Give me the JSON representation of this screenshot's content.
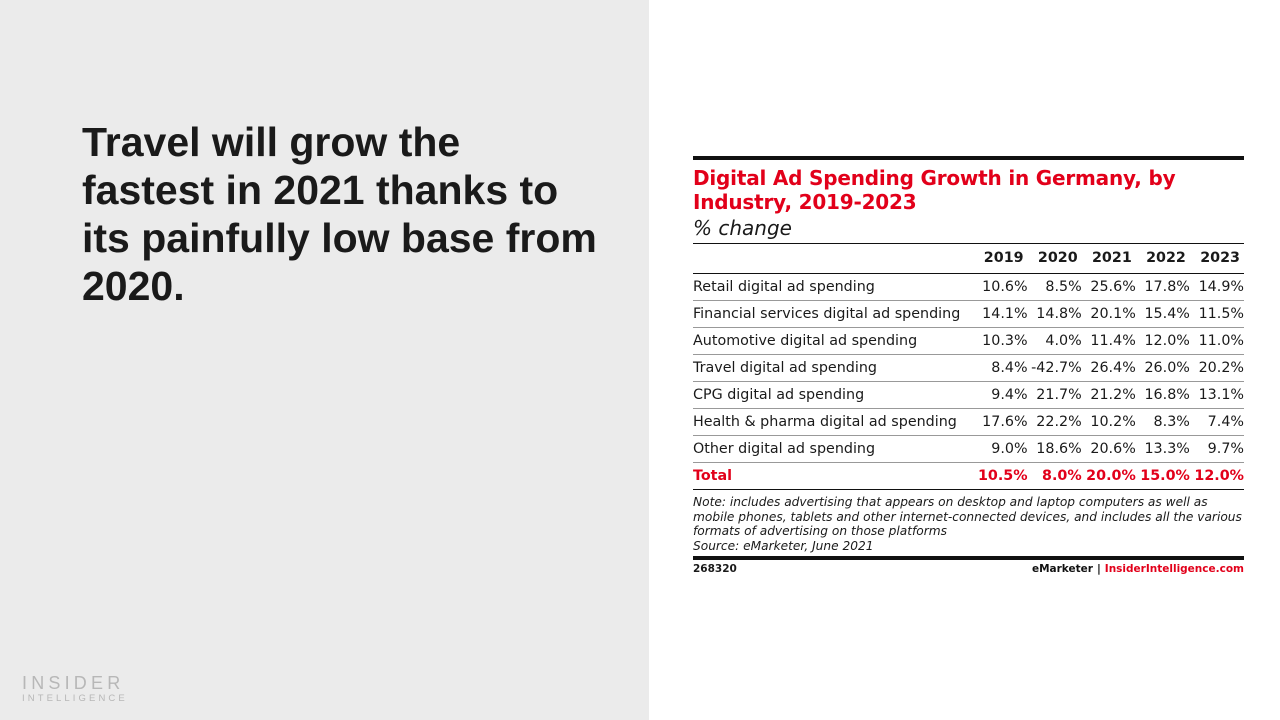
{
  "slide": {
    "headline": "Travel will grow the fastest in 2021 thanks to its painfully low base from 2020.",
    "logo": {
      "line1": "INSIDER",
      "line2": "INTELLIGENCE"
    }
  },
  "chart_data": {
    "type": "table",
    "title": "Digital Ad Spending Growth in Germany, by Industry, 2019-2023",
    "subtitle": "% change",
    "columns": [
      "2019",
      "2020",
      "2021",
      "2022",
      "2023"
    ],
    "rows": [
      {
        "label": "Retail digital ad spending",
        "values": [
          "10.6%",
          "8.5%",
          "25.6%",
          "17.8%",
          "14.9%"
        ]
      },
      {
        "label": "Financial services digital ad spending",
        "values": [
          "14.1%",
          "14.8%",
          "20.1%",
          "15.4%",
          "11.5%"
        ]
      },
      {
        "label": "Automotive digital ad spending",
        "values": [
          "10.3%",
          "4.0%",
          "11.4%",
          "12.0%",
          "11.0%"
        ]
      },
      {
        "label": "Travel digital ad spending",
        "values": [
          "8.4%",
          "-42.7%",
          "26.4%",
          "26.0%",
          "20.2%"
        ]
      },
      {
        "label": "CPG digital ad spending",
        "values": [
          "9.4%",
          "21.7%",
          "21.2%",
          "16.8%",
          "13.1%"
        ]
      },
      {
        "label": "Health & pharma digital ad spending",
        "values": [
          "17.6%",
          "22.2%",
          "10.2%",
          "8.3%",
          "7.4%"
        ]
      },
      {
        "label": "Other digital ad spending",
        "values": [
          "9.0%",
          "18.6%",
          "20.6%",
          "13.3%",
          "9.7%"
        ]
      }
    ],
    "total": {
      "label": "Total",
      "values": [
        "10.5%",
        "8.0%",
        "20.0%",
        "15.0%",
        "12.0%"
      ]
    },
    "note": "Note: includes advertising that appears on desktop and laptop computers as well as mobile phones, tablets and other internet-connected devices, and includes all the various formats of advertising on those platforms",
    "source": "Source: eMarketer, June 2021",
    "chart_id": "268320",
    "brand": {
      "left": "eMarketer",
      "separator": "|",
      "right": "InsiderIntelligence.com"
    },
    "accent_color": "#e2001a"
  }
}
